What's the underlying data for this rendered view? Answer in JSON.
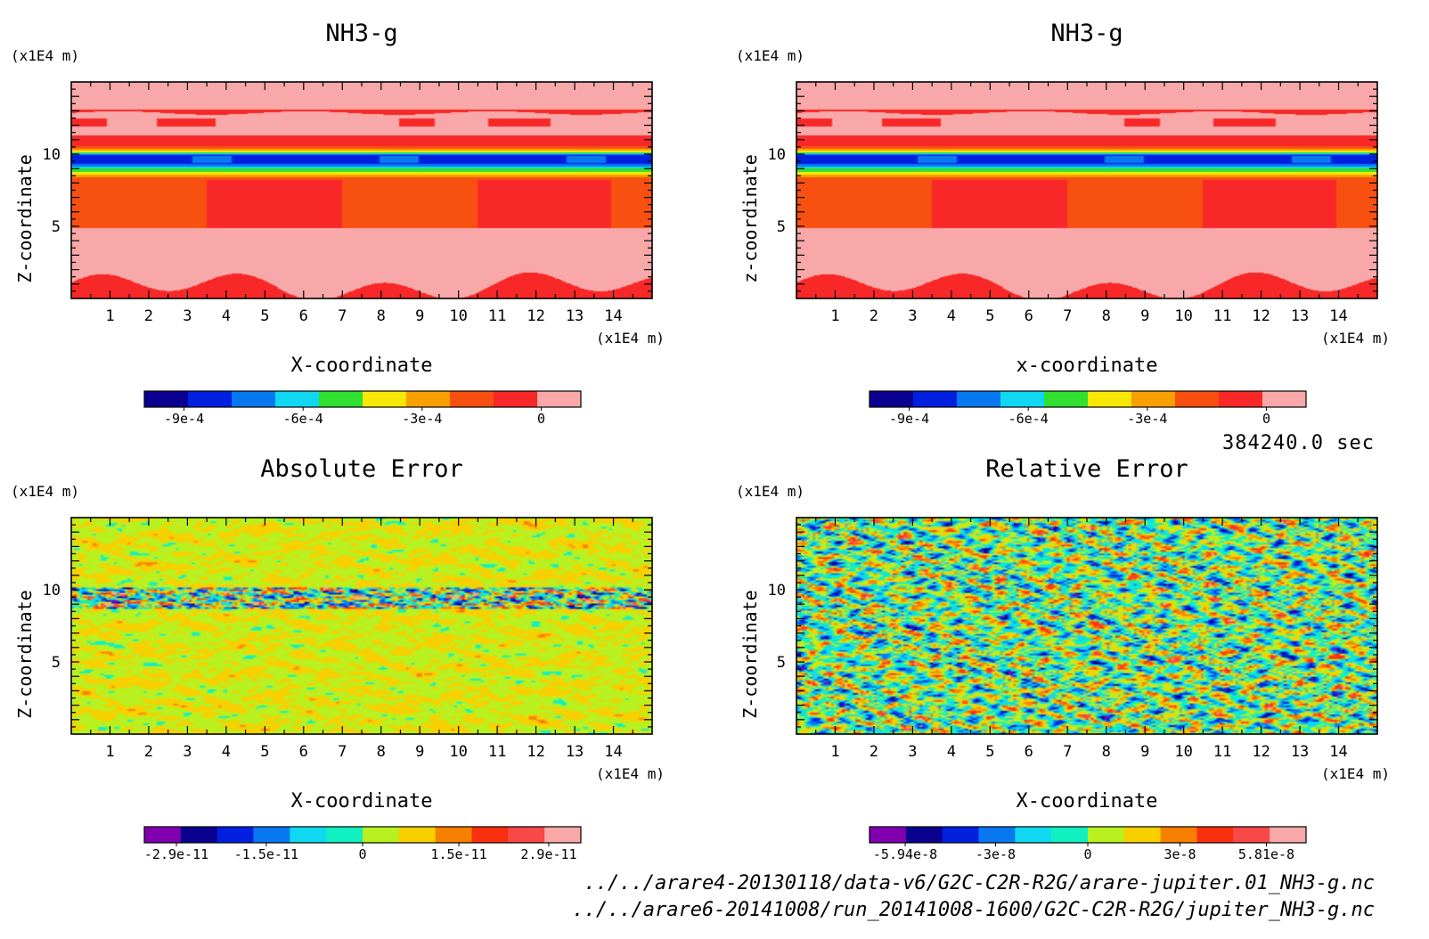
{
  "time_label": "384240.0 sec",
  "footer": {
    "file1": "../../arare4-20130118/data-v6/G2C-C2R-R2G/arare-jupiter.01_NH3-g.nc",
    "file2": "../../arare6-20141008/run_20141008-1600/G2C-C2R-R2G/jupiter_NH3-g.nc"
  },
  "chart_data": [
    {
      "id": "p1",
      "type": "heatmap",
      "title": "NH3-g",
      "xlabel": "X-coordinate",
      "ylabel": "Z-coordinate",
      "xunit": "(x1E4 m)",
      "yunit": "(x1E4 m)",
      "xlim": [
        0,
        15
      ],
      "ylim": [
        0,
        15
      ],
      "xticks": [
        "1",
        "2",
        "3",
        "4",
        "5",
        "6",
        "7",
        "8",
        "9",
        "10",
        "11",
        "12",
        "13",
        "14"
      ],
      "yticks": [
        "5",
        "10"
      ],
      "field": "nh3",
      "colorbar": {
        "colors": [
          "#0a0090",
          "#0020e0",
          "#0878f0",
          "#10d8f0",
          "#30e030",
          "#f8e808",
          "#f8a000",
          "#f85010",
          "#f82828",
          "#f8a8a8"
        ],
        "labels": [
          "-9e-4",
          "-6e-4",
          "-3e-4",
          "0"
        ],
        "label_values": [
          -0.0009,
          -0.0006,
          -0.0003,
          0
        ],
        "range": [
          -0.001,
          0.0001
        ]
      }
    },
    {
      "id": "p2",
      "type": "heatmap",
      "title": "NH3-g",
      "xlabel": "x-coordinate",
      "ylabel": "z-coordinate",
      "xunit": "(x1E4 m)",
      "yunit": "(x1E4 m)",
      "xlim": [
        0,
        15
      ],
      "ylim": [
        0,
        15
      ],
      "xticks": [
        "1",
        "2",
        "3",
        "4",
        "5",
        "6",
        "7",
        "8",
        "9",
        "10",
        "11",
        "12",
        "13",
        "14"
      ],
      "yticks": [
        "5",
        "10"
      ],
      "field": "nh3",
      "colorbar": {
        "colors": [
          "#0a0090",
          "#0020e0",
          "#0878f0",
          "#10d8f0",
          "#30e030",
          "#f8e808",
          "#f8a000",
          "#f85010",
          "#f82828",
          "#f8a8a8"
        ],
        "labels": [
          "-9e-4",
          "-6e-4",
          "-3e-4",
          "0"
        ],
        "label_values": [
          -0.0009,
          -0.0006,
          -0.0003,
          0
        ],
        "range": [
          -0.001,
          0.0001
        ]
      }
    },
    {
      "id": "p3",
      "type": "heatmap",
      "title": "Absolute Error",
      "xlabel": "X-coordinate",
      "ylabel": "Z-coordinate",
      "xunit": "(x1E4 m)",
      "yunit": "(x1E4 m)",
      "xlim": [
        0,
        15
      ],
      "ylim": [
        0,
        15
      ],
      "xticks": [
        "1",
        "2",
        "3",
        "4",
        "5",
        "6",
        "7",
        "8",
        "9",
        "10",
        "11",
        "12",
        "13",
        "14"
      ],
      "yticks": [
        "5",
        "10"
      ],
      "field": "abs",
      "colorbar": {
        "colors": [
          "#8000b0",
          "#0a0090",
          "#0020e0",
          "#0878f0",
          "#10d8f0",
          "#10f0c0",
          "#b8f020",
          "#f8d000",
          "#f88000",
          "#f83010",
          "#f84848",
          "#f8a8a8"
        ],
        "labels": [
          "-2.9e-11",
          "-1.5e-11",
          "0",
          "1.5e-11",
          "2.9e-11"
        ],
        "label_values": [
          -2.9e-11,
          -1.5e-11,
          0,
          1.5e-11,
          2.9e-11
        ],
        "range": [
          -3.4e-11,
          3.4e-11
        ]
      }
    },
    {
      "id": "p4",
      "type": "heatmap",
      "title": "Relative Error",
      "xlabel": "X-coordinate",
      "ylabel": "Z-coordinate",
      "xunit": "(x1E4 m)",
      "yunit": "(x1E4 m)",
      "xlim": [
        0,
        15
      ],
      "ylim": [
        0,
        15
      ],
      "xticks": [
        "1",
        "2",
        "3",
        "4",
        "5",
        "6",
        "7",
        "8",
        "9",
        "10",
        "11",
        "12",
        "13",
        "14"
      ],
      "yticks": [
        "5",
        "10"
      ],
      "field": "rel",
      "colorbar": {
        "colors": [
          "#8000b0",
          "#0a0090",
          "#0020e0",
          "#0878f0",
          "#10d8f0",
          "#10f0c0",
          "#b8f020",
          "#f8d000",
          "#f88000",
          "#f83010",
          "#f84848",
          "#f8a8a8"
        ],
        "labels": [
          "-5.94e-8",
          "-3e-8",
          "0",
          "3e-8",
          "5.81e-8"
        ],
        "label_values": [
          -5.94e-08,
          -3e-08,
          0,
          3e-08,
          5.81e-08
        ],
        "range": [
          -7.1e-08,
          7.1e-08
        ]
      }
    }
  ]
}
